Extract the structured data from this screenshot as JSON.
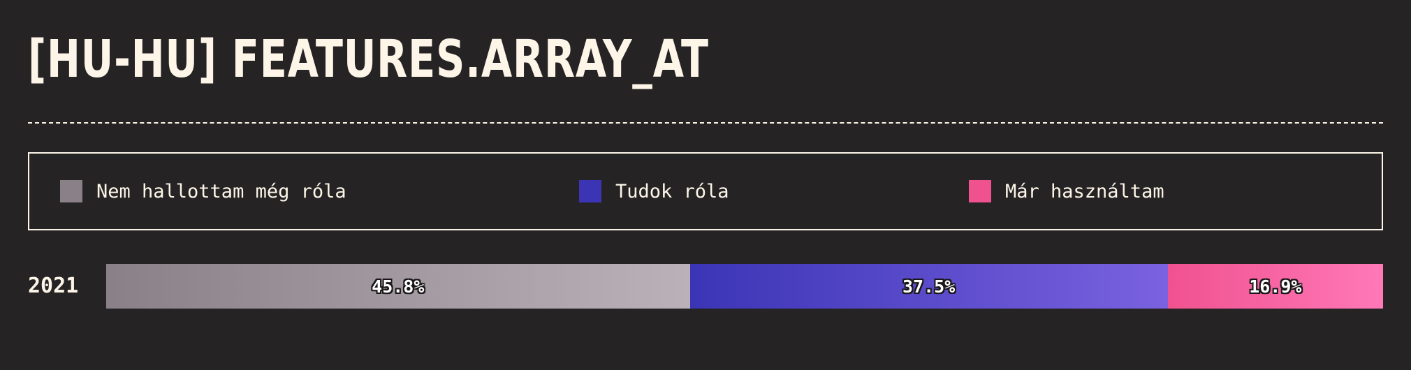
{
  "title": "[HU-HU] FEATURES.ARRAY_AT",
  "legend": [
    {
      "label": "Nem hallottam még róla",
      "color": "#8a8088"
    },
    {
      "label": "Tudok róla",
      "color": "#3b35b5"
    },
    {
      "label": "Már használtam",
      "color": "#f0528f"
    }
  ],
  "chart_data": {
    "type": "bar",
    "orientation": "horizontal-stacked-100",
    "categories": [
      "2021"
    ],
    "series": [
      {
        "name": "Nem hallottam még róla",
        "values": [
          45.8
        ],
        "label": "45.8%",
        "color_start": "#8a8088",
        "color_end": "#bab2b8"
      },
      {
        "name": "Tudok róla",
        "values": [
          37.5
        ],
        "label": "37.5%",
        "color_start": "#3b35b5",
        "color_end": "#7a62e0"
      },
      {
        "name": "Már használtam",
        "values": [
          16.9
        ],
        "label": "16.9%",
        "color_start": "#f0528f",
        "color_end": "#ff78b8"
      }
    ],
    "xlim": [
      0,
      100
    ],
    "legend_position": "top"
  }
}
